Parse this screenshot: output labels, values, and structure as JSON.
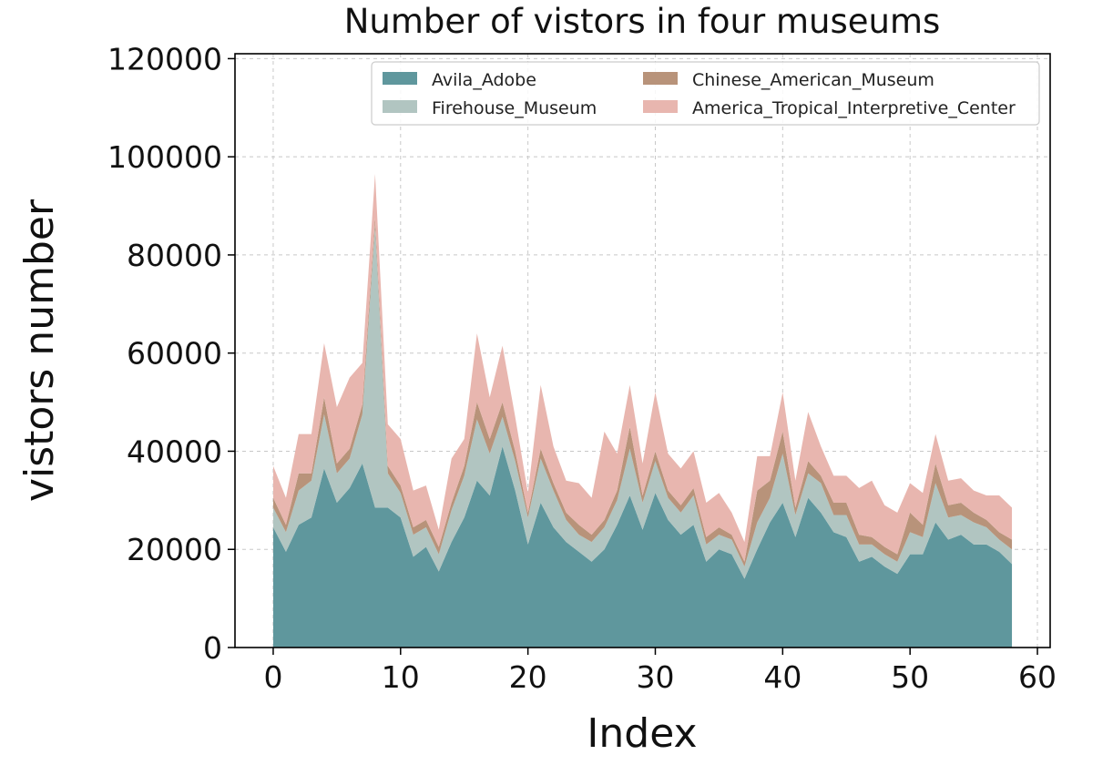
{
  "chart_data": {
    "type": "area",
    "stacked": true,
    "title": "Number of vistors in four museums",
    "xlabel": "Index",
    "ylabel": "vistors number",
    "xlim": [
      -3,
      61
    ],
    "ylim": [
      0,
      121000
    ],
    "xticks": [
      0,
      10,
      20,
      30,
      40,
      50,
      60
    ],
    "yticks": [
      0,
      20000,
      40000,
      60000,
      80000,
      100000,
      120000
    ],
    "grid": true,
    "legend_position": "top-right",
    "x": [
      0,
      1,
      2,
      3,
      4,
      5,
      6,
      7,
      8,
      9,
      10,
      11,
      12,
      13,
      14,
      15,
      16,
      17,
      18,
      19,
      20,
      21,
      22,
      23,
      24,
      25,
      26,
      27,
      28,
      29,
      30,
      31,
      32,
      33,
      34,
      35,
      36,
      37,
      38,
      39,
      40,
      41,
      42,
      43,
      44,
      45,
      46,
      47,
      48,
      49,
      50,
      51,
      52,
      53,
      54,
      55,
      56,
      57,
      58
    ],
    "series": [
      {
        "name": "Avila_Adobe",
        "color": "#5f979d",
        "values": [
          24500,
          19500,
          25000,
          26500,
          36500,
          29500,
          32500,
          37500,
          28500,
          28500,
          26500,
          18500,
          20500,
          15500,
          21500,
          26500,
          34000,
          31000,
          41000,
          32000,
          21000,
          29500,
          24500,
          21500,
          19500,
          17500,
          20000,
          25000,
          31000,
          24000,
          31500,
          26000,
          23000,
          25000,
          17500,
          20000,
          19000,
          14000,
          20000,
          25500,
          29500,
          22500,
          30500,
          27500,
          23500,
          22500,
          17500,
          18500,
          16500,
          15000,
          19000,
          19000,
          25500,
          22000,
          23000,
          21000,
          21000,
          19500,
          17000
        ]
      },
      {
        "name": "Firehouse_Museum",
        "color": "#b1c5c1",
        "values": [
          4000,
          4000,
          7000,
          7500,
          11000,
          6000,
          6000,
          10000,
          57500,
          7000,
          5000,
          4500,
          4000,
          3500,
          6500,
          8500,
          12500,
          8500,
          6000,
          6000,
          5500,
          9000,
          7500,
          4500,
          3500,
          4000,
          4500,
          5000,
          9500,
          5500,
          6500,
          4500,
          4500,
          6000,
          3500,
          3000,
          3000,
          2500,
          5500,
          5000,
          10000,
          4500,
          5000,
          6000,
          3500,
          4500,
          3500,
          2500,
          2500,
          2500,
          4500,
          3500,
          8000,
          4500,
          4000,
          4500,
          3500,
          2500,
          3000
        ]
      },
      {
        "name": "Chinese_American_Museum",
        "color": "#b8937a",
        "values": [
          2000,
          1500,
          3500,
          1500,
          3500,
          2000,
          2000,
          2000,
          1500,
          1500,
          1500,
          1500,
          1500,
          1500,
          1500,
          2000,
          3500,
          3000,
          3000,
          2000,
          1000,
          2000,
          1500,
          1500,
          2000,
          1500,
          1500,
          2000,
          4500,
          1500,
          2000,
          1500,
          1500,
          1500,
          1500,
          1500,
          1000,
          1000,
          6500,
          3500,
          4500,
          1500,
          2500,
          1500,
          2500,
          2500,
          2000,
          1500,
          1500,
          1500,
          4000,
          2500,
          4000,
          2500,
          2500,
          2000,
          1500,
          1500,
          2000
        ]
      },
      {
        "name": "America_Tropical_Interpretive_Center",
        "color": "#e8b6af",
        "values": [
          6500,
          5500,
          8000,
          8000,
          11000,
          11500,
          14500,
          8500,
          9000,
          8500,
          9500,
          7500,
          7000,
          3500,
          9000,
          5500,
          14000,
          8500,
          11500,
          7000,
          4000,
          13000,
          7500,
          6500,
          8500,
          7500,
          18000,
          7500,
          8500,
          6500,
          12000,
          7500,
          7500,
          7500,
          7000,
          7000,
          4500,
          4000,
          7000,
          5000,
          8000,
          5500,
          10000,
          6000,
          5500,
          5500,
          9500,
          11500,
          8500,
          8500,
          6000,
          6500,
          6000,
          5000,
          5000,
          4500,
          5000,
          7500,
          6500
        ]
      }
    ]
  }
}
